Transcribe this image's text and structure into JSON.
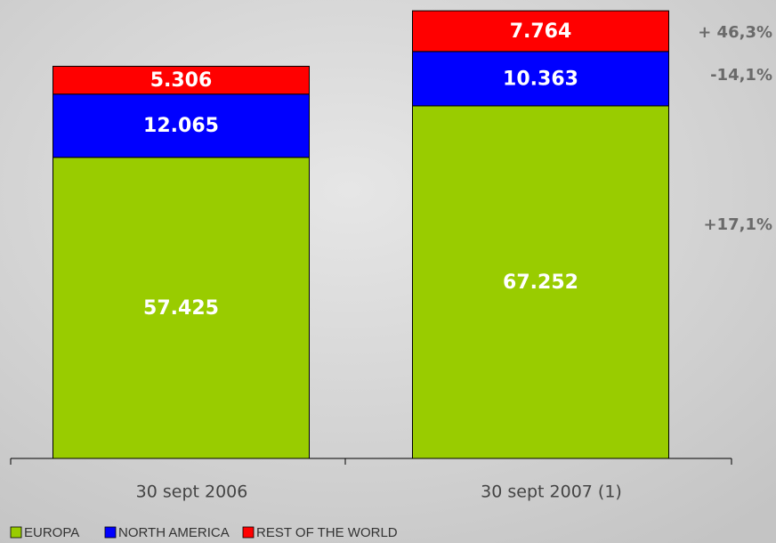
{
  "chart_data": {
    "type": "stacked-bar",
    "categories": [
      "30 sept 2006",
      "30 sept 2007 (1)"
    ],
    "series": [
      {
        "name": "EUROPA",
        "color": "#99cc00",
        "values": [
          57425,
          67252
        ],
        "value_labels": [
          "57.425",
          "67.252"
        ]
      },
      {
        "name": "NORTH AMERICA",
        "color": "#0000ff",
        "values": [
          12065,
          10363
        ],
        "value_labels": [
          "12.065",
          "10.363"
        ]
      },
      {
        "name": "REST OF THE WORLD",
        "color": "#ff0000",
        "values": [
          5306,
          7764
        ],
        "value_labels": [
          "5.306",
          "7.764"
        ]
      }
    ],
    "annotations": [
      "+ 46,3%",
      "-14,1%",
      "+17,1%"
    ],
    "ylim": [
      0,
      85400
    ],
    "legend": "bottom"
  }
}
